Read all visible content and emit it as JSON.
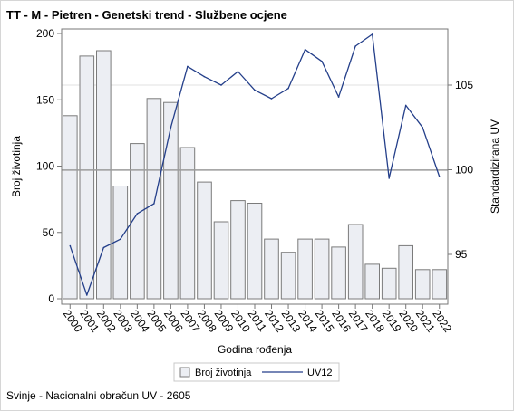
{
  "title": "TT - M - Pietren - Genetski trend - Službene ocjene",
  "footnote": "Svinje - Nacionalni obračun UV - 2605",
  "colors": {
    "bar_fill": "#eceef3",
    "bar_stroke": "#7b7b7b",
    "line": "#243f8a",
    "grid": "#e2e2e2",
    "reference_line": "#9b9b9b",
    "axis": "#777777"
  },
  "chart_data": {
    "type": "bar+line",
    "categories": [
      "2000",
      "2001",
      "2002",
      "2003",
      "2004",
      "2005",
      "2006",
      "2007",
      "2008",
      "2009",
      "2010",
      "2011",
      "2012",
      "2013",
      "2014",
      "2015",
      "2016",
      "2017",
      "2018",
      "2019",
      "2020",
      "2021",
      "2022"
    ],
    "series": [
      {
        "name": "Broj životinja",
        "type": "bar",
        "axis": "left",
        "values": [
          138,
          183,
          187,
          85,
          117,
          151,
          148,
          114,
          88,
          58,
          74,
          72,
          45,
          35,
          45,
          45,
          39,
          56,
          26,
          23,
          40,
          22,
          22
        ]
      },
      {
        "name": "UV12",
        "type": "line",
        "axis": "right",
        "values": [
          95.5,
          92.6,
          95.4,
          95.9,
          97.4,
          98.0,
          102.5,
          106.1,
          105.5,
          105.0,
          105.8,
          104.7,
          104.2,
          104.8,
          107.1,
          106.4,
          104.3,
          107.3,
          108.0,
          99.5,
          103.8,
          102.5,
          99.6
        ]
      }
    ],
    "xlabel": "Godina rođenja",
    "ylabel_left": "Broj životinja",
    "ylabel_right": "Standardizirana UV",
    "ylim_left": [
      0,
      200
    ],
    "yticks_left": [
      0,
      50,
      100,
      150,
      200
    ],
    "ylim_right": [
      92,
      110
    ],
    "yticks_right": [
      95,
      100,
      105
    ],
    "reference_left": 97,
    "grid_right": 105,
    "legend_position": "bottom-center"
  }
}
